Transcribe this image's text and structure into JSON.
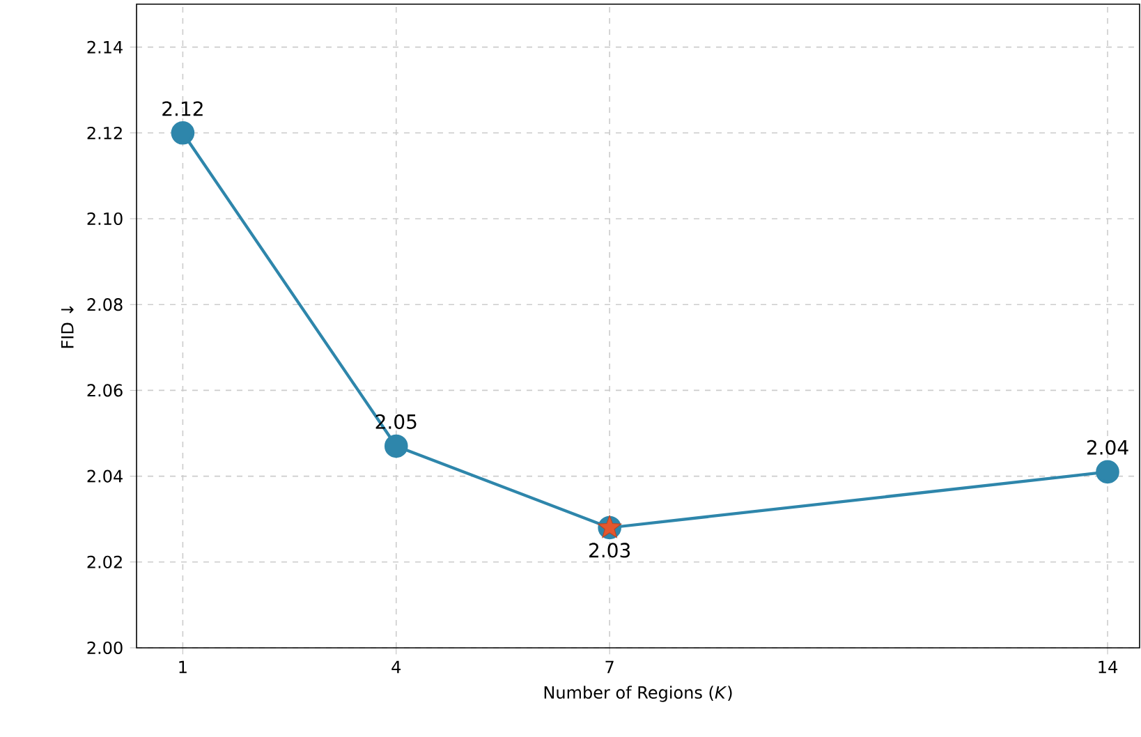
{
  "chart_data": {
    "type": "line",
    "xlabel": "Number of Regions (*K*)",
    "ylabel": "FID ↓",
    "x": [
      1,
      4,
      7,
      14
    ],
    "series": [
      {
        "color": "#2e86ab",
        "marker": "circle",
        "values": [
          2.12,
          2.047,
          2.028,
          2.041
        ],
        "value_labels": [
          "2.12",
          "2.05",
          "2.03",
          "2.04"
        ]
      },
      {
        "type": "scatter",
        "color": "#e4572e",
        "marker": "star",
        "x": [
          7
        ],
        "values": [
          2.028
        ]
      }
    ],
    "xlim": [
      0.35,
      14.45
    ],
    "xticks": [
      1,
      4,
      7,
      14
    ],
    "ylim": [
      2.0,
      2.15
    ],
    "yticks": [
      {
        "value": 2.0,
        "label": "2.00"
      },
      2.02,
      2.04,
      2.06,
      2.08,
      {
        "value": 2.1,
        "label": "2.10"
      },
      2.12,
      2.14
    ],
    "grid": true,
    "line_style": "solid"
  }
}
